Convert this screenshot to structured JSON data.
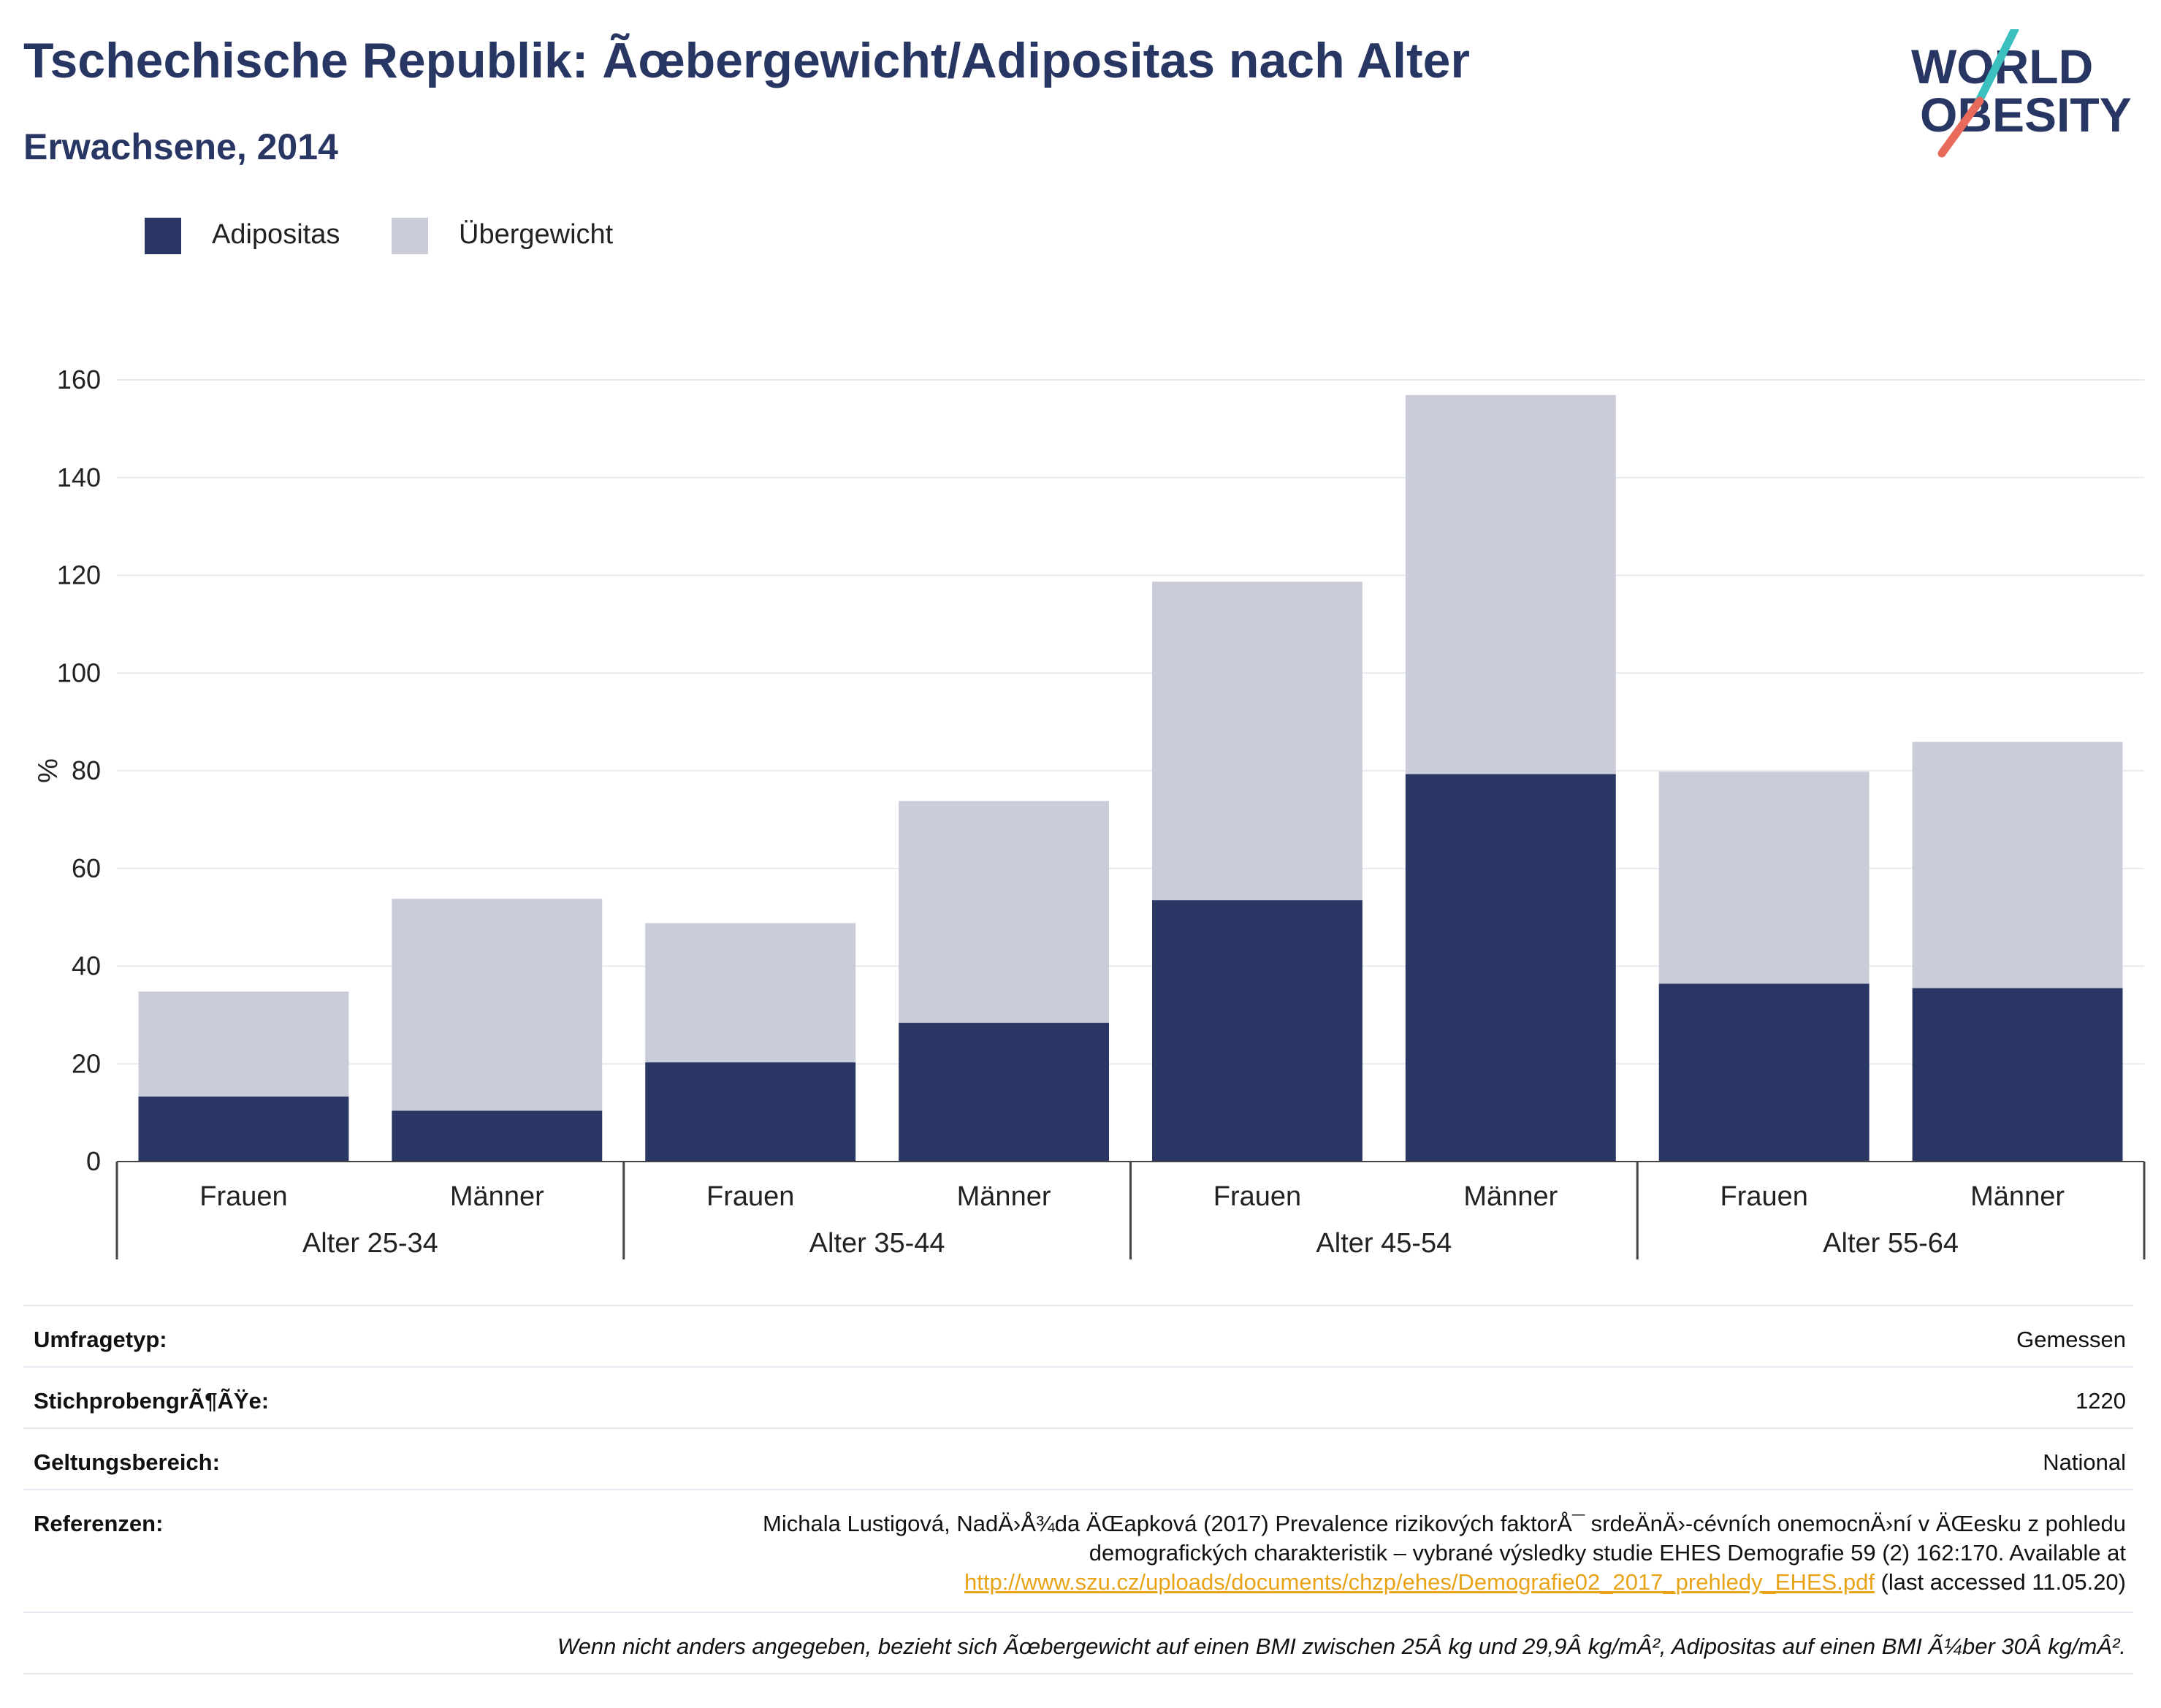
{
  "header": {
    "title": "Tschechische Republik: Ãœbergewicht/Adipositas nach Alter",
    "subtitle": "Erwachsene, 2014"
  },
  "logo": {
    "line1": "WORLD",
    "line2": "OBESITY"
  },
  "colors": {
    "adipositas": "#2a3663",
    "uebergewicht": "#cacdd9",
    "title": "#283663",
    "logo_slash_teal": "#3bbfbf",
    "logo_slash_coral": "#e86a5a",
    "link": "#e8a317"
  },
  "legend": [
    {
      "label": "Adipositas",
      "color": "#2a3663"
    },
    {
      "label": "Übergewicht",
      "color": "#cacdd9"
    }
  ],
  "chart_data": {
    "type": "bar",
    "stacked": true,
    "ylabel": "%",
    "ylim": [
      0,
      160
    ],
    "yticks": [
      0,
      20,
      40,
      60,
      80,
      100,
      120,
      140,
      160
    ],
    "grid": true,
    "legend_position": "top-left",
    "groups": [
      "Alter 25-34",
      "Alter 35-44",
      "Alter 45-54",
      "Alter 55-64"
    ],
    "categories": [
      "Frauen",
      "Männer",
      "Frauen",
      "Männer",
      "Frauen",
      "Männer",
      "Frauen",
      "Männer"
    ],
    "series": [
      {
        "name": "Adipositas",
        "values": [
          13.3,
          10.4,
          20.3,
          28.4,
          53.5,
          79.3,
          36.4,
          35.5
        ]
      },
      {
        "name": "Übergewicht",
        "values": [
          21.5,
          43.4,
          28.5,
          45.4,
          65.2,
          77.6,
          43.4,
          50.4
        ]
      }
    ]
  },
  "info": {
    "survey_type": {
      "label": "Umfragetyp:",
      "value": "Gemessen"
    },
    "sample_size": {
      "label": "StichprobengrÃ¶ÃŸe:",
      "value": "1220"
    },
    "scope": {
      "label": "Geltungsbereich:",
      "value": "National"
    },
    "references": {
      "label": "Referenzen:",
      "text_line1": "Michala Lustigová, NadÄ›Å¾da ÄŒapková (2017) Prevalence rizikových faktorÅ¯ srdeÄnÄ›-cévních onemocnÄ›ní v ÄŒesku z pohledu",
      "text_line2": "demografických charakteristik – vybrané výsledky studie EHES Demografie 59 (2) 162:170. Available at",
      "link": "http://www.szu.cz/uploads/documents/chzp/ehes/Demografie02_2017_prehledy_EHES.pdf",
      "link_suffix": " (last accessed 11.05.20)"
    },
    "footnote": "Wenn nicht anders angegeben, bezieht sich Ãœbergewicht auf einen BMI zwischen 25Â kg und 29,9Â kg/mÂ², Adipositas auf einen BMI Ã¼ber 30Â kg/mÂ²."
  }
}
